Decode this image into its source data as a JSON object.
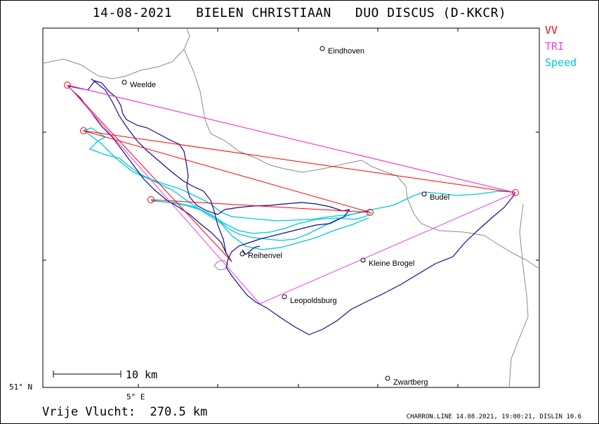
{
  "title": "14-08-2021   BIELEN CHRISTIAAN   DUO DISCUS (D-KKCR)",
  "legend": [
    {
      "label": "VV",
      "color": "#ff0000"
    },
    {
      "label": "TRI",
      "color": "#ee44ee"
    },
    {
      "label": "Speed",
      "color": "#00c8dc"
    }
  ],
  "places": {
    "eindhoven": "Eindhoven",
    "weelde": "Weelde",
    "budel": "Budel",
    "reihenvel": "Reihenvel",
    "kleine_brogel": "Kleine Brogel",
    "leopoldsburg": "Leopoldsburg",
    "zwartberg": "Zwartberg"
  },
  "scale_label": "10 km",
  "latitude_label": "51° N",
  "longitude_label": "5° E",
  "summary": "Vrije Vlucht:  270.5 km",
  "footer": "CHARRON.LINE 14.08.2021, 19:00:21, DISLIN 10.6",
  "colors": {
    "track": "#1a0a8c",
    "border": "#8a8a8a",
    "vv": "#ff0000",
    "tri": "#ee44ee",
    "speed": "#00c8dc"
  }
}
